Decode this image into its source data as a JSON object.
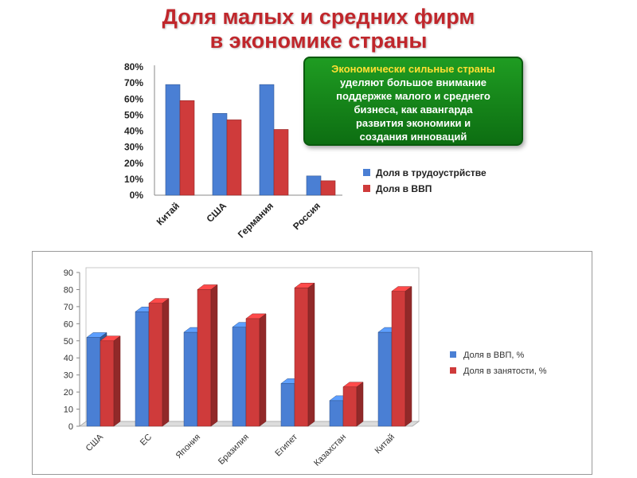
{
  "title": {
    "line1": "Доля малых и средних фирм",
    "line2": "в экономике страны"
  },
  "callout": {
    "highlight": "Экономически сильные страны",
    "lines": [
      "уделяют большое внимание",
      "поддержке малого и среднего",
      "бизнеса, как авангарда",
      "развития экономики и",
      "создания инноваций"
    ]
  },
  "colors": {
    "title": "#c0262b",
    "series_blue": "#4a7fd4",
    "series_red": "#cf3b3b",
    "callout_green": "#1a8a1f",
    "callout_highlight": "#ffe033"
  },
  "chart_data": [
    {
      "type": "bar",
      "categories": [
        "Китай",
        "США",
        "Германия",
        "Россия"
      ],
      "series": [
        {
          "name": "Доля в трудоустрйстве",
          "values": [
            69,
            51,
            69,
            12
          ]
        },
        {
          "name": "Доля в ВВП",
          "values": [
            59,
            47,
            41,
            9
          ]
        }
      ],
      "y_ticks": [
        "0%",
        "10%",
        "20%",
        "30%",
        "40%",
        "50%",
        "60%",
        "70%",
        "80%"
      ],
      "ylim": [
        0,
        80
      ],
      "grid": false,
      "legend": "right"
    },
    {
      "type": "bar",
      "categories": [
        "США",
        "ЕС",
        "Япония",
        "Бразилия",
        "Египет",
        "Казахстан",
        "Китай"
      ],
      "series": [
        {
          "name": "Доля в ВВП, %",
          "values": [
            52,
            67,
            55,
            58,
            25,
            15,
            55
          ]
        },
        {
          "name": "Доля в занятости, %",
          "values": [
            50,
            72,
            80,
            63,
            81,
            23,
            79
          ]
        }
      ],
      "y_ticks": [
        "0",
        "10",
        "20",
        "30",
        "40",
        "50",
        "60",
        "70",
        "80",
        "90"
      ],
      "ylim": [
        0,
        90
      ],
      "grid": false,
      "legend": "right"
    }
  ]
}
